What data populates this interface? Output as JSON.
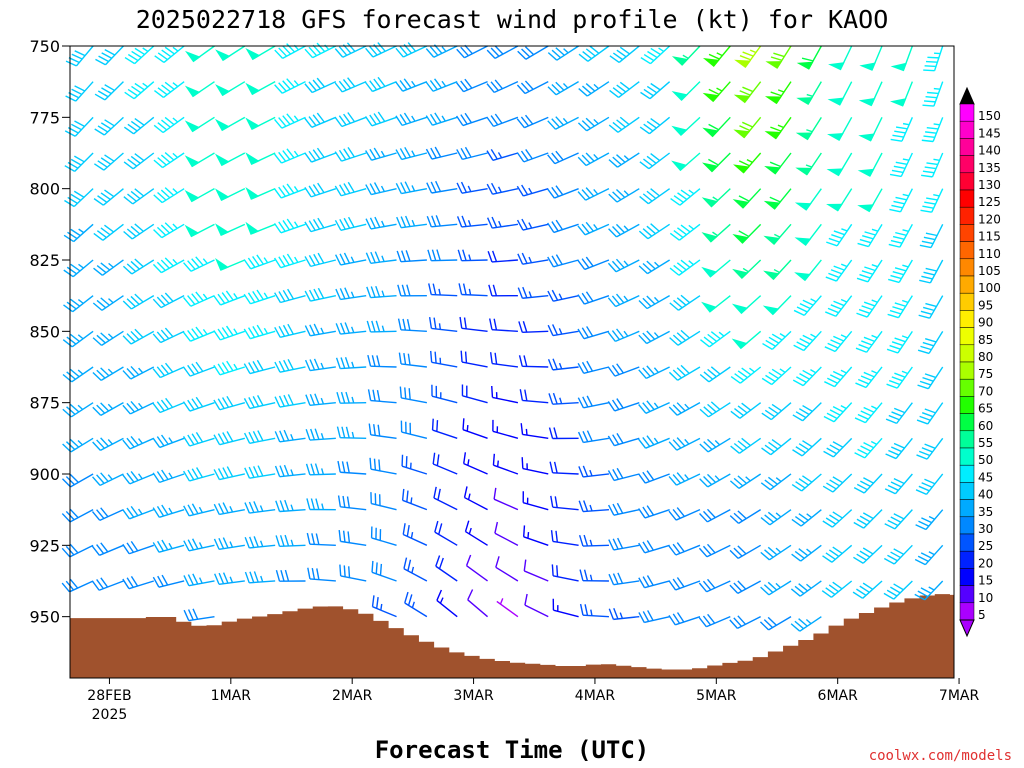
{
  "page": {
    "title": "2025022718 GFS forecast wind profile (kt) for KAOO",
    "credit": "coolwx.com/models"
  },
  "colors": {
    "terrain": "#a0522d",
    "credit": "#e03030"
  },
  "chart_data": {
    "type": "wind-barb-time-height",
    "title": "2025022718 GFS forecast wind profile (kt) for KAOO",
    "xlabel": "Forecast Time (UTC)",
    "ylabel": "",
    "x_ticks": [
      "28FEB",
      "1MAR",
      "2MAR",
      "3MAR",
      "4MAR",
      "5MAR",
      "6MAR",
      "7MAR"
    ],
    "x_tick_sub": {
      "28FEB": "2025"
    },
    "x_range_hours": [
      -1.8,
      173.0
    ],
    "x_hours_per_day": 24,
    "x_first_tick_hour": 6,
    "y_ticks": [
      750,
      775,
      800,
      825,
      850,
      875,
      900,
      925,
      950
    ],
    "y_ticks_labels": [
      "750",
      "775",
      "800",
      "825",
      "850",
      "875",
      "900",
      "925",
      "950"
    ],
    "y_range_hpa": [
      750,
      971.5
    ],
    "levels_hpa": [
      750,
      762.5,
      775,
      787.5,
      800,
      812.5,
      825,
      837.5,
      850,
      862.5,
      875,
      887.5,
      900,
      912.5,
      925,
      937.5,
      950
    ],
    "barb_interval_hours": 6,
    "colorbar": {
      "unit": "kt",
      "labels": [
        "150",
        "145",
        "140",
        "135",
        "130",
        "125",
        "120",
        "115",
        "110",
        "105",
        "100",
        "95",
        "90",
        "85",
        "80",
        "75",
        "70",
        "65",
        "60",
        "55",
        "50",
        "45",
        "40",
        "35",
        "30",
        "25",
        "20",
        "15",
        "10",
        "5"
      ],
      "colors": [
        "#ff00ff",
        "#ff00cc",
        "#ff0099",
        "#ff0066",
        "#ff0033",
        "#ff0000",
        "#ff2200",
        "#ff4400",
        "#ff6600",
        "#ff8800",
        "#ffaa00",
        "#ffcc00",
        "#ffee00",
        "#eeff00",
        "#ccff00",
        "#aaff00",
        "#66ff00",
        "#22ff00",
        "#00ff44",
        "#00ff99",
        "#00ffcc",
        "#00eeff",
        "#00ccff",
        "#00aaff",
        "#0088ff",
        "#0055ff",
        "#0022ff",
        "#0000ff",
        "#5500ff",
        "#aa00ff"
      ]
    },
    "surface_pressure": [
      {
        "hour": 0,
        "p": 950.5
      },
      {
        "hour": 12,
        "p": 950.5
      },
      {
        "hour": 15,
        "p": 949.5
      },
      {
        "hour": 18,
        "p": 951
      },
      {
        "hour": 21,
        "p": 953
      },
      {
        "hour": 24,
        "p": 953.5
      },
      {
        "hour": 30,
        "p": 951
      },
      {
        "hour": 36,
        "p": 949.5
      },
      {
        "hour": 42,
        "p": 947.5
      },
      {
        "hour": 48,
        "p": 946
      },
      {
        "hour": 54,
        "p": 948
      },
      {
        "hour": 60,
        "p": 953
      },
      {
        "hour": 66,
        "p": 958
      },
      {
        "hour": 72,
        "p": 962
      },
      {
        "hour": 78,
        "p": 964.5
      },
      {
        "hour": 84,
        "p": 966
      },
      {
        "hour": 96,
        "p": 967.5
      },
      {
        "hour": 102,
        "p": 966.5
      },
      {
        "hour": 108,
        "p": 967.5
      },
      {
        "hour": 114,
        "p": 968.5
      },
      {
        "hour": 120,
        "p": 968.5
      },
      {
        "hour": 126,
        "p": 966.5
      },
      {
        "hour": 132,
        "p": 965
      },
      {
        "hour": 138,
        "p": 961
      },
      {
        "hour": 144,
        "p": 957
      },
      {
        "hour": 150,
        "p": 951.5
      },
      {
        "hour": 156,
        "p": 947.5
      },
      {
        "hour": 162,
        "p": 944
      },
      {
        "hour": 168,
        "p": 942
      },
      {
        "hour": 174,
        "p": 942.5
      },
      {
        "hour": 180,
        "p": 945
      },
      {
        "hour": 186,
        "p": 948
      },
      {
        "hour": 192,
        "p": 950
      },
      {
        "hour": 198,
        "p": 951
      },
      {
        "hour": 204,
        "p": 952
      },
      {
        "hour": 210,
        "p": 952
      }
    ],
    "wind_note": "barbs drawn at each level/time; speed (kt) sets color per colorbar"
  }
}
